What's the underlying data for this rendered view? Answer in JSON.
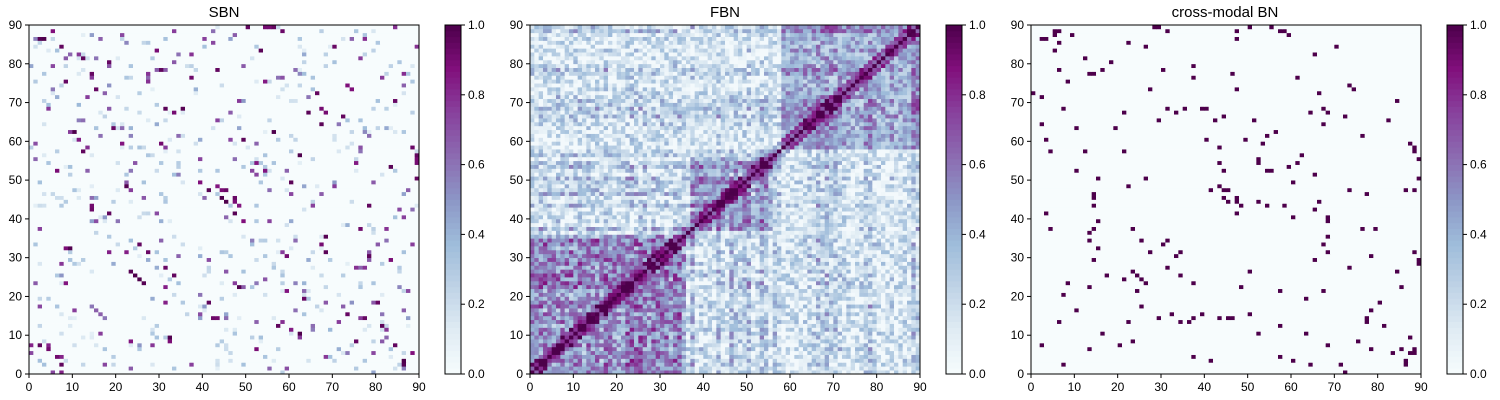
{
  "chart_data": [
    {
      "type": "heatmap",
      "title": "SBN",
      "xlim": [
        0,
        90
      ],
      "ylim": [
        0,
        90
      ],
      "xticks": [
        "0",
        "10",
        "20",
        "30",
        "40",
        "50",
        "60",
        "70",
        "80",
        "90"
      ],
      "yticks": [
        "0",
        "10",
        "20",
        "30",
        "40",
        "50",
        "60",
        "70",
        "80",
        "90"
      ],
      "colorbar": {
        "range": [
          0,
          1
        ],
        "ticks": [
          "0.0",
          "0.2",
          "0.4",
          "0.6",
          "0.8",
          "1.0"
        ]
      },
      "matrix_size": 90,
      "pattern": "sparse-symmetric",
      "sample_strong_cells": [
        [
          3,
          86
        ],
        [
          5,
          88
        ],
        [
          7,
          2
        ],
        [
          8,
          75
        ],
        [
          12,
          57
        ],
        [
          14,
          77
        ],
        [
          14,
          45
        ],
        [
          16,
          10
        ],
        [
          18,
          80
        ],
        [
          19,
          63
        ],
        [
          22,
          48
        ],
        [
          23,
          26
        ],
        [
          25,
          24
        ],
        [
          27,
          31
        ],
        [
          33,
          67
        ],
        [
          35,
          68
        ],
        [
          37,
          76
        ],
        [
          41,
          47
        ],
        [
          43,
          14
        ],
        [
          44,
          45
        ],
        [
          45,
          47
        ],
        [
          47,
          44
        ],
        [
          48,
          43
        ],
        [
          50,
          89
        ],
        [
          52,
          54
        ],
        [
          54,
          52
        ],
        [
          56,
          62
        ],
        [
          58,
          88
        ],
        [
          60,
          49
        ],
        [
          62,
          56
        ],
        [
          64,
          67
        ],
        [
          67,
          64
        ],
        [
          68,
          31
        ],
        [
          72,
          66
        ],
        [
          74,
          73
        ],
        [
          76,
          37
        ],
        [
          78,
          30
        ],
        [
          81,
          12
        ],
        [
          84,
          70
        ],
        [
          86,
          2
        ],
        [
          88,
          5
        ],
        [
          89,
          55
        ]
      ]
    },
    {
      "type": "heatmap",
      "title": "FBN",
      "xlim": [
        0,
        90
      ],
      "ylim": [
        0,
        90
      ],
      "xticks": [
        "0",
        "10",
        "20",
        "30",
        "40",
        "50",
        "60",
        "70",
        "80",
        "90"
      ],
      "yticks": [
        "0",
        "10",
        "20",
        "30",
        "40",
        "50",
        "60",
        "70",
        "80",
        "90"
      ],
      "colorbar": {
        "range": [
          0,
          1
        ],
        "ticks": [
          "0.0",
          "0.2",
          "0.4",
          "0.6",
          "0.8",
          "1.0"
        ]
      },
      "matrix_size": 90,
      "pattern": "dense-symmetric",
      "diagonal_value": 1.0,
      "strong_blocks": [
        [
          0,
          36
        ],
        [
          37,
          56
        ],
        [
          58,
          90
        ]
      ],
      "typical_value_range": [
        0.1,
        0.95
      ]
    },
    {
      "type": "heatmap",
      "title": "cross-modal BN",
      "xlim": [
        0,
        90
      ],
      "ylim": [
        0,
        90
      ],
      "xticks": [
        "0",
        "10",
        "20",
        "30",
        "40",
        "50",
        "60",
        "70",
        "80",
        "90"
      ],
      "yticks": [
        "0",
        "10",
        "20",
        "30",
        "40",
        "50",
        "60",
        "70",
        "80",
        "90"
      ],
      "colorbar": {
        "range": [
          0,
          1
        ],
        "ticks": [
          "0.0",
          "0.2",
          "0.4",
          "0.6",
          "0.8",
          "1.0"
        ]
      },
      "matrix_size": 90,
      "pattern": "sparse-symmetric-binary",
      "sample_strong_cells": [
        [
          3,
          86
        ],
        [
          5,
          88
        ],
        [
          7,
          2
        ],
        [
          8,
          75
        ],
        [
          12,
          57
        ],
        [
          14,
          77
        ],
        [
          14,
          45
        ],
        [
          16,
          10
        ],
        [
          18,
          80
        ],
        [
          19,
          63
        ],
        [
          22,
          48
        ],
        [
          23,
          26
        ],
        [
          25,
          24
        ],
        [
          27,
          31
        ],
        [
          33,
          67
        ],
        [
          35,
          68
        ],
        [
          37,
          76
        ],
        [
          41,
          47
        ],
        [
          43,
          14
        ],
        [
          44,
          45
        ],
        [
          45,
          47
        ],
        [
          47,
          44
        ],
        [
          48,
          43
        ],
        [
          50,
          89
        ],
        [
          52,
          54
        ],
        [
          54,
          52
        ],
        [
          56,
          62
        ],
        [
          58,
          88
        ],
        [
          60,
          49
        ],
        [
          62,
          56
        ],
        [
          64,
          67
        ],
        [
          67,
          64
        ],
        [
          68,
          31
        ],
        [
          72,
          66
        ],
        [
          74,
          73
        ],
        [
          76,
          37
        ],
        [
          78,
          30
        ],
        [
          81,
          12
        ],
        [
          84,
          70
        ],
        [
          86,
          2
        ],
        [
          88,
          5
        ],
        [
          89,
          55
        ]
      ]
    }
  ],
  "colormap": {
    "name": "BuPu",
    "stops": [
      "#f7fcfd",
      "#e0ecf4",
      "#bfd3e6",
      "#9ebcda",
      "#8c96c6",
      "#8c6bb1",
      "#88419d",
      "#810f7c",
      "#4d004b"
    ]
  }
}
